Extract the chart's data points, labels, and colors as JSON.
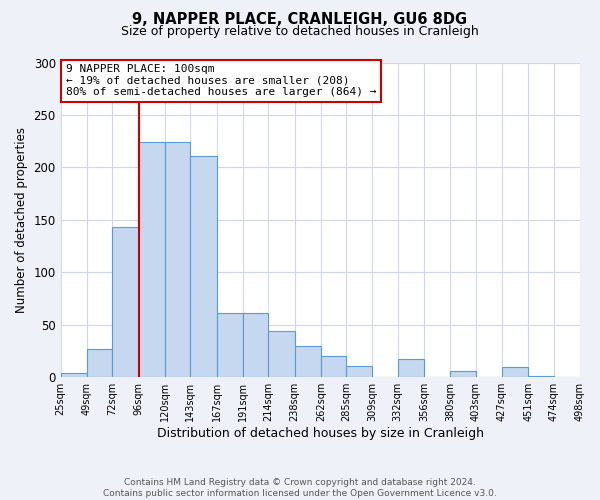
{
  "title": "9, NAPPER PLACE, CRANLEIGH, GU6 8DG",
  "subtitle": "Size of property relative to detached houses in Cranleigh",
  "xlabel": "Distribution of detached houses by size in Cranleigh",
  "ylabel": "Number of detached properties",
  "footer_line1": "Contains HM Land Registry data © Crown copyright and database right 2024.",
  "footer_line2": "Contains public sector information licensed under the Open Government Licence v3.0.",
  "bin_edges": [
    25,
    49,
    72,
    96,
    120,
    143,
    167,
    191,
    214,
    238,
    262,
    285,
    309,
    332,
    356,
    380,
    403,
    427,
    451,
    474,
    498
  ],
  "bar_values": [
    4,
    27,
    143,
    224,
    224,
    211,
    61,
    61,
    44,
    30,
    20,
    11,
    0,
    17,
    0,
    6,
    0,
    10,
    1,
    0
  ],
  "bar_color": "#c5d8f0",
  "bar_edge_color": "#5b9bd5",
  "vline_x": 96,
  "vline_color": "#cc0000",
  "ylim": [
    0,
    300
  ],
  "yticks": [
    0,
    50,
    100,
    150,
    200,
    250,
    300
  ],
  "annotation_title": "9 NAPPER PLACE: 100sqm",
  "annotation_line1": "← 19% of detached houses are smaller (208)",
  "annotation_line2": "80% of semi-detached houses are larger (864) →",
  "annotation_box_color": "#ffffff",
  "annotation_box_edge_color": "#cc0000",
  "bg_color": "#eef2f8",
  "plot_bg_color": "#ffffff",
  "grid_color": "#d0d8e8"
}
